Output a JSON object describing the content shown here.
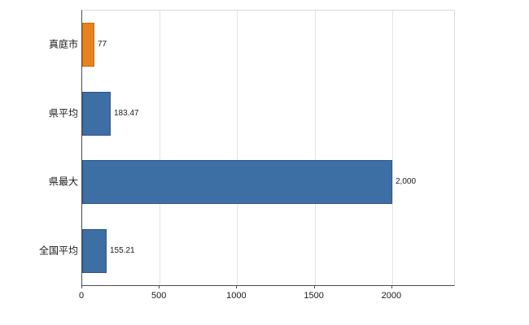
{
  "chart_data": {
    "type": "bar",
    "orientation": "horizontal",
    "title": "",
    "xlabel": "",
    "ylabel": "",
    "categories": [
      "真庭市",
      "県平均",
      "県最大",
      "全国平均"
    ],
    "values": [
      77,
      183.47,
      2000,
      155.21
    ],
    "value_labels": [
      "77",
      "183.47",
      "2,000",
      "155.21"
    ],
    "bar_colors": [
      "#e8821e",
      "#3d6fa4",
      "#3d6fa4",
      "#3d6fa4"
    ],
    "bar_border_colors": [
      "#c56a10",
      "#2f578a",
      "#2f578a",
      "#2f578a"
    ],
    "x_ticks": [
      0,
      500,
      1000,
      1500,
      2000
    ],
    "x_tick_labels": [
      "0",
      "500",
      "1000",
      "1500",
      "2000"
    ],
    "xlim": [
      0,
      2400
    ],
    "grid": true,
    "legend": "none",
    "background": "#ffffff"
  }
}
